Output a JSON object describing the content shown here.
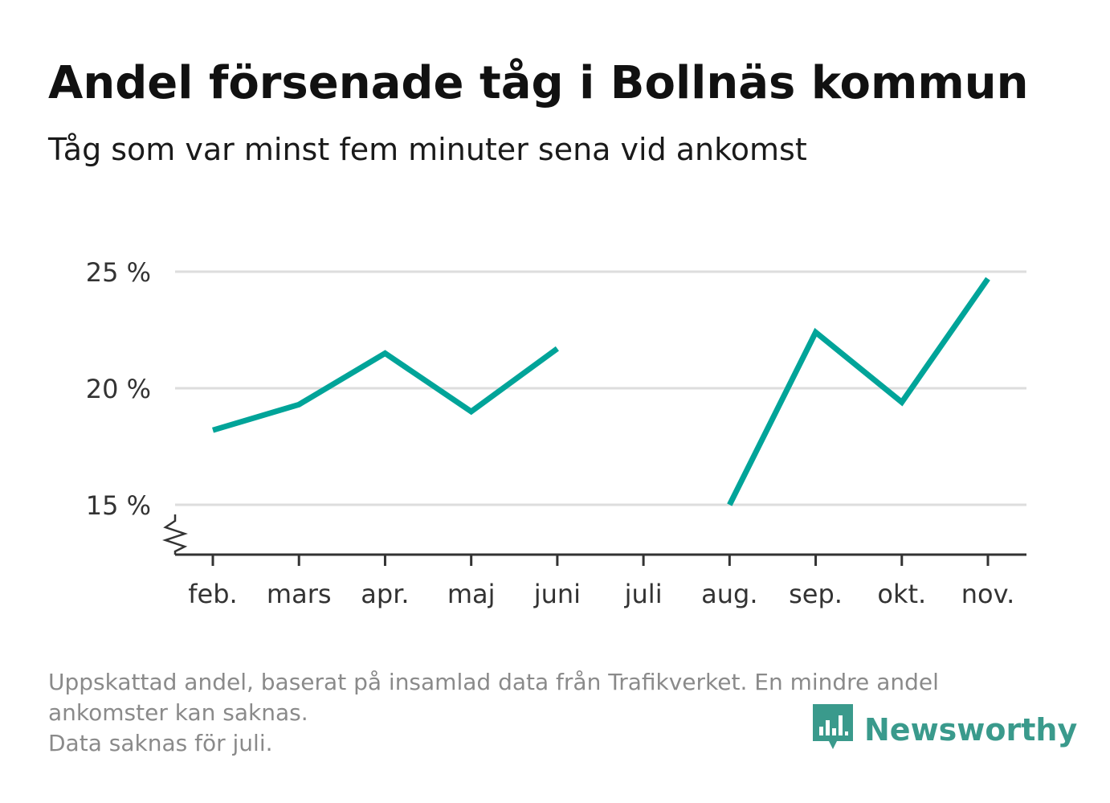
{
  "title": "Andel försenade tåg i Bollnäs kommun",
  "subtitle": "Tåg som var minst fem minuter sena vid ankomst",
  "footnote": {
    "line1": "Uppskattad andel, baserat på insamlad data från Trafikverket. En mindre andel",
    "line2": "ankomster kan saknas.",
    "line3": "Data saknas för juli."
  },
  "brand": {
    "name": "Newsworthy",
    "logo_icon": "newsworthy-bar-chart-icon",
    "color": "#3a9a8c"
  },
  "chart_data": {
    "type": "line",
    "categories": [
      "feb.",
      "mars",
      "apr.",
      "maj",
      "juni",
      "juli",
      "aug.",
      "sep.",
      "okt.",
      "nov."
    ],
    "series": [
      {
        "name": "",
        "values": [
          18.2,
          19.3,
          21.5,
          19.0,
          21.7,
          null,
          15.0,
          22.4,
          19.4,
          24.7
        ],
        "color": "#00a499"
      }
    ],
    "y_ticks": [
      15,
      20,
      25
    ],
    "y_tick_labels": [
      "15 %",
      "20 %",
      "25 %"
    ],
    "ylim": [
      12.8,
      25
    ],
    "axis_break": true,
    "grid": true,
    "gridline_color": "#dddddd",
    "xlabel": "",
    "ylabel": ""
  }
}
